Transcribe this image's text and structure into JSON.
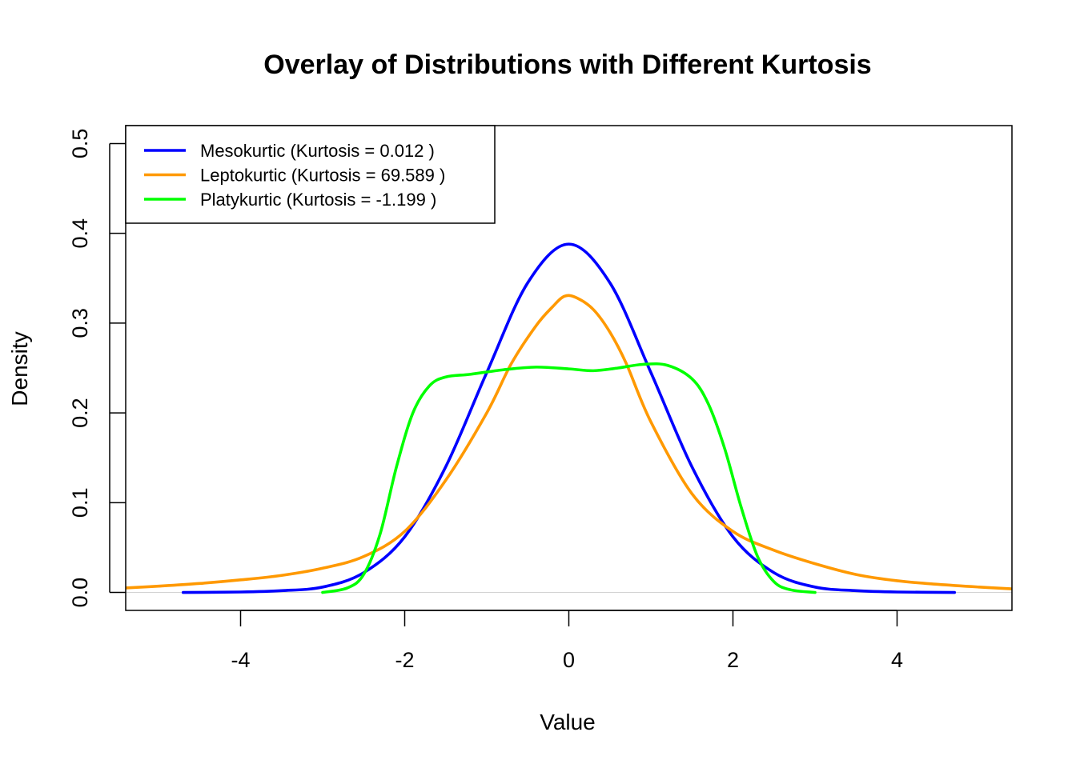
{
  "chart_data": {
    "type": "line",
    "title": "Overlay of Distributions with Different Kurtosis",
    "xlabel": "Value",
    "ylabel": "Density",
    "xlim": [
      -5.4,
      5.4
    ],
    "ylim": [
      -0.02,
      0.52
    ],
    "xticks": [
      -4,
      -2,
      0,
      2,
      4
    ],
    "xtick_labels": [
      "-4",
      "-2",
      "0",
      "2",
      "4"
    ],
    "yticks": [
      0.0,
      0.1,
      0.2,
      0.3,
      0.4,
      0.5
    ],
    "ytick_labels": [
      "0.0",
      "0.1",
      "0.2",
      "0.3",
      "0.4",
      "0.5"
    ],
    "baseline": {
      "y": 0,
      "color": "#d3d3d3"
    },
    "legend": {
      "position": "top-left",
      "framed": true
    },
    "grid": false,
    "series": [
      {
        "name": "Mesokurtic (Kurtosis = 0.012 )",
        "color": "#0000ff",
        "x": [
          -4.7,
          -4.0,
          -3.5,
          -3.0,
          -2.5,
          -2.0,
          -1.5,
          -1.0,
          -0.5,
          0.0,
          0.5,
          1.0,
          1.5,
          2.0,
          2.5,
          3.0,
          3.5,
          4.0,
          4.7
        ],
        "y": [
          0.0,
          0.0005,
          0.002,
          0.006,
          0.022,
          0.062,
          0.14,
          0.245,
          0.345,
          0.388,
          0.345,
          0.245,
          0.14,
          0.062,
          0.022,
          0.006,
          0.002,
          0.0005,
          0.0
        ]
      },
      {
        "name": "Leptokurtic (Kurtosis = 69.589 )",
        "color": "#ff9900",
        "x": [
          -5.4,
          -5.0,
          -4.5,
          -4.0,
          -3.5,
          -3.0,
          -2.5,
          -2.0,
          -1.5,
          -1.0,
          -0.7,
          -0.4,
          -0.2,
          -0.05,
          0.1,
          0.3,
          0.5,
          0.7,
          1.0,
          1.5,
          2.0,
          2.5,
          3.0,
          3.5,
          4.0,
          4.5,
          5.0,
          5.4
        ],
        "y": [
          0.005,
          0.007,
          0.01,
          0.014,
          0.019,
          0.027,
          0.04,
          0.068,
          0.125,
          0.2,
          0.255,
          0.297,
          0.318,
          0.33,
          0.328,
          0.315,
          0.29,
          0.255,
          0.19,
          0.11,
          0.068,
          0.047,
          0.032,
          0.02,
          0.013,
          0.009,
          0.006,
          0.004
        ]
      },
      {
        "name": "Platykurtic (Kurtosis = -1.199 )",
        "color": "#00ff00",
        "x": [
          -3.0,
          -2.7,
          -2.5,
          -2.3,
          -2.1,
          -1.9,
          -1.7,
          -1.5,
          -1.2,
          -0.8,
          -0.4,
          0.0,
          0.3,
          0.6,
          0.9,
          1.2,
          1.5,
          1.7,
          1.9,
          2.1,
          2.3,
          2.5,
          2.7,
          3.0
        ],
        "y": [
          0.0,
          0.005,
          0.02,
          0.065,
          0.14,
          0.2,
          0.23,
          0.24,
          0.243,
          0.248,
          0.251,
          0.249,
          0.247,
          0.25,
          0.254,
          0.253,
          0.238,
          0.21,
          0.16,
          0.095,
          0.04,
          0.012,
          0.003,
          0.0
        ]
      }
    ]
  }
}
